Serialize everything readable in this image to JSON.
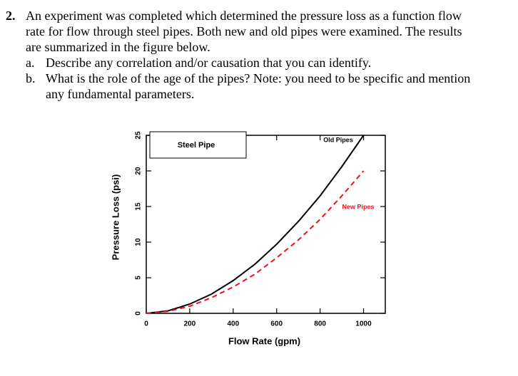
{
  "problem": {
    "number": "2.",
    "lines": [
      "An experiment was completed which determined the pressure loss as a function flow",
      "rate for flow through steel pipes. Both new and old pipes were examined. The results",
      "are summarized in the figure below."
    ],
    "parts": [
      {
        "label": "a.",
        "lines": [
          "Describe any correlation and/or causation that you can identify."
        ]
      },
      {
        "label": "b.",
        "lines": [
          "What is the role of the age of the pipes? Note: you need to be specific and mention",
          "any fundamental parameters."
        ]
      }
    ]
  },
  "chart_data": {
    "type": "line",
    "title": "Steel Pipe",
    "x_label": "Flow Rate (gpm)",
    "y_label": "Pressure Loss (psi)",
    "x": [
      0,
      100,
      200,
      300,
      400,
      500,
      600,
      700,
      800,
      900,
      1000
    ],
    "series": [
      {
        "name": "Old Pipes",
        "color": "#000000",
        "style": "solid",
        "values": [
          0,
          0.35,
          1.3,
          2.7,
          4.6,
          6.9,
          9.7,
          12.9,
          16.5,
          20.6,
          25
        ]
      },
      {
        "name": "New Pipes",
        "color": "#e8141b",
        "style": "dashed",
        "values": [
          0,
          0.28,
          1.0,
          2.2,
          3.7,
          5.5,
          7.8,
          10.3,
          13.2,
          16.5,
          20
        ]
      }
    ],
    "xlim": [
      0,
      1100
    ],
    "ylim": [
      0,
      25
    ],
    "xticks": [
      0,
      200,
      400,
      600,
      800,
      1000
    ],
    "yticks": [
      0,
      5,
      10,
      15,
      20,
      25
    ]
  }
}
